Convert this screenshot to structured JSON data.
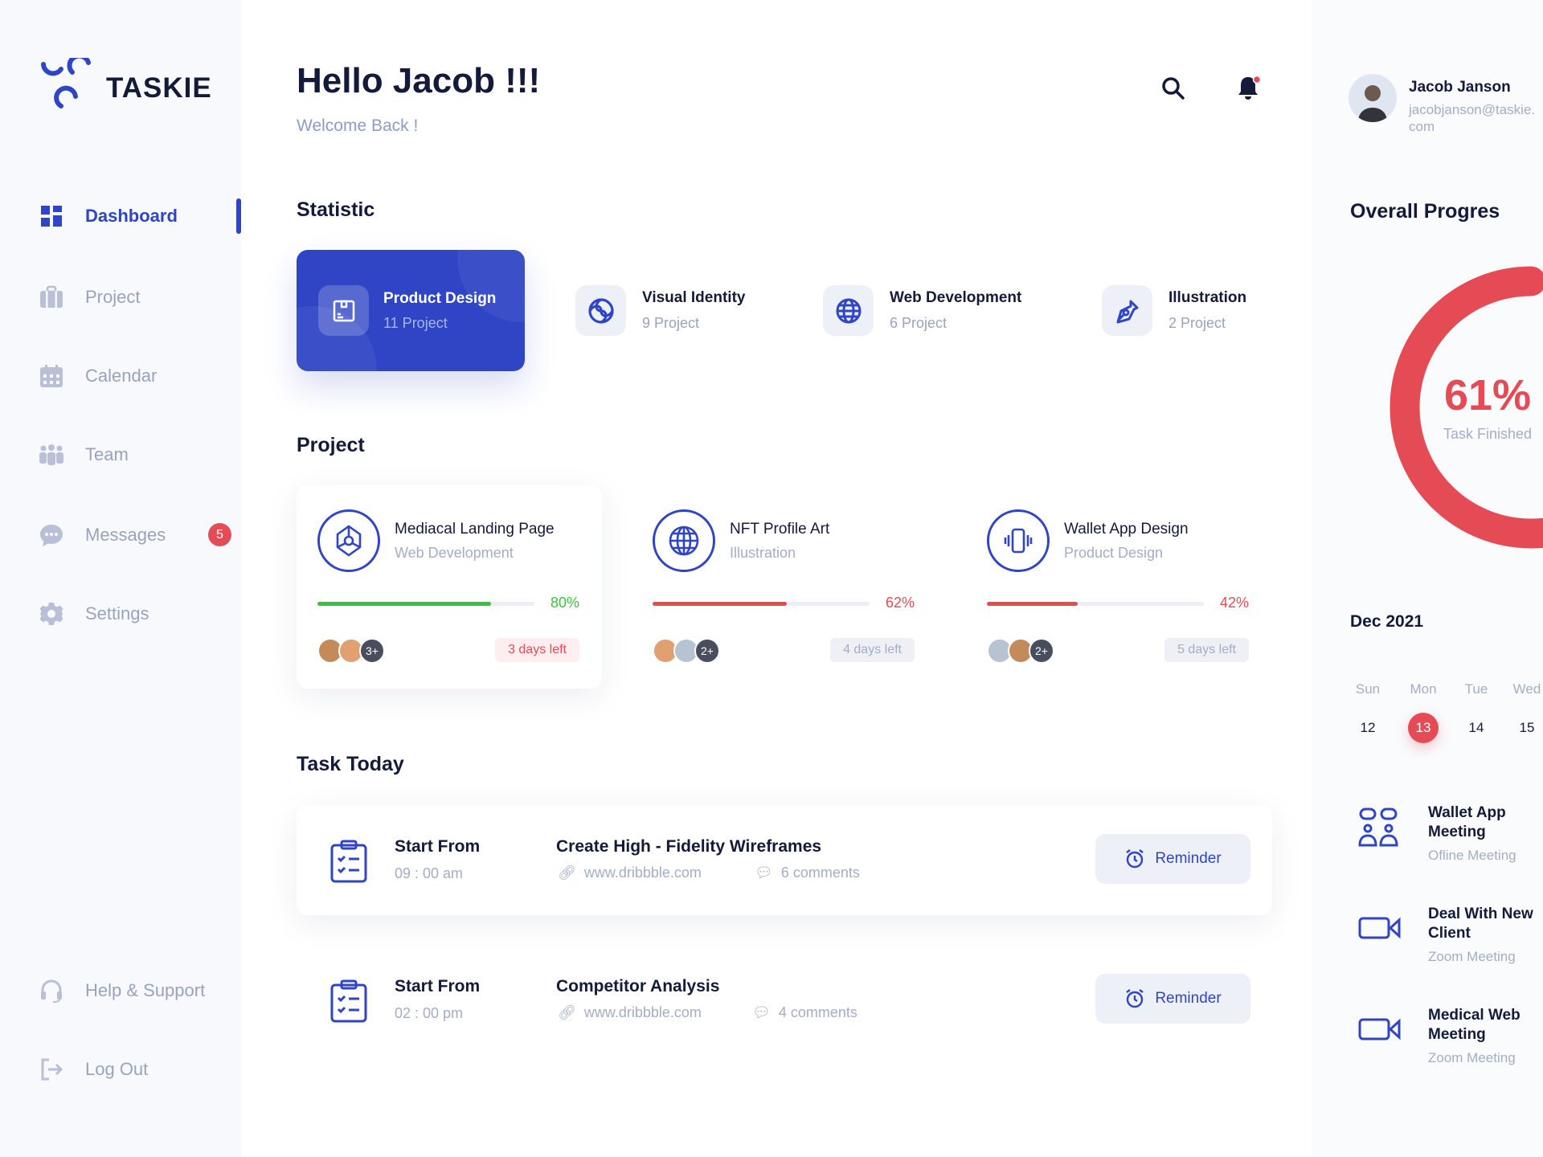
{
  "app": {
    "name": "TASKIE"
  },
  "sidebar": {
    "items": [
      {
        "label": "Dashboard",
        "icon": "grid-icon",
        "active": true
      },
      {
        "label": "Project",
        "icon": "briefcase-icon"
      },
      {
        "label": "Calendar",
        "icon": "calendar-icon"
      },
      {
        "label": "Team",
        "icon": "team-icon"
      },
      {
        "label": "Messages",
        "icon": "chat-icon",
        "badge": "5"
      },
      {
        "label": "Settings",
        "icon": "gear-icon"
      }
    ],
    "bottom": [
      {
        "label": "Help & Support",
        "icon": "headset-icon"
      },
      {
        "label": "Log Out",
        "icon": "logout-icon"
      }
    ]
  },
  "header": {
    "greeting": "Hello Jacob !!!",
    "subtitle": "Welcome Back !"
  },
  "user": {
    "name": "Jacob Janson",
    "email": "jacobjanson@taskie.com"
  },
  "statistic": {
    "title": "Statistic",
    "items": [
      {
        "title": "Product Design",
        "count": "11 Project",
        "icon": "box-icon",
        "active": true
      },
      {
        "title": "Visual Identity",
        "count": "9 Project",
        "icon": "swirl-icon"
      },
      {
        "title": "Web Development",
        "count": "6 Project",
        "icon": "globe-icon"
      },
      {
        "title": "Illustration",
        "count": "2 Project",
        "icon": "pen-tool-icon"
      }
    ]
  },
  "projects": {
    "title": "Project",
    "items": [
      {
        "title": "Mediacal Landing Page",
        "category": "Web Development",
        "progress": 80,
        "progress_label": "80%",
        "color": "#3cc23a",
        "more": "3+",
        "days_left": "3 days left",
        "urgent": true
      },
      {
        "title": "NFT Profile Art",
        "category": "Illustration",
        "progress": 62,
        "progress_label": "62%",
        "color": "#e54b55",
        "more": "2+",
        "days_left": "4 days left"
      },
      {
        "title": "Wallet App Design",
        "category": "Product Design",
        "progress": 42,
        "progress_label": "42%",
        "color": "#e54b55",
        "more": "2+",
        "days_left": "5 days left"
      }
    ]
  },
  "tasks": {
    "title": "Task Today",
    "items": [
      {
        "label": "Start From",
        "time": "09 : 00 am",
        "title": "Create High - Fidelity Wireframes",
        "link": "www.dribbble.com",
        "comments": "6 comments",
        "button": "Reminder"
      },
      {
        "label": "Start From",
        "time": "02 : 00 pm",
        "title": "Competitor Analysis",
        "link": "www.dribbble.com",
        "comments": "4 comments",
        "button": "Reminder"
      }
    ]
  },
  "progress": {
    "title": "Overall Progres",
    "value": 61,
    "value_label": "61%",
    "caption": "Task Finished",
    "color": "#e54b55"
  },
  "calendar": {
    "month": "Dec 2021",
    "days": [
      {
        "name": "Sun",
        "num": "12"
      },
      {
        "name": "Mon",
        "num": "13",
        "selected": true
      },
      {
        "name": "Tue",
        "num": "14"
      },
      {
        "name": "Wed",
        "num": "15"
      }
    ]
  },
  "meetings": [
    {
      "title": "Wallet App Meeting",
      "type": "Ofline Meeting",
      "icon": "meeting-icon"
    },
    {
      "title": "Deal With New Client",
      "type": "Zoom Meeting",
      "icon": "video-icon"
    },
    {
      "title": "Medical Web Meeting",
      "type": "Zoom Meeting",
      "icon": "video-icon"
    }
  ],
  "colors": {
    "accent": "#2f45c5",
    "danger": "#e54b55",
    "success": "#3cc23a",
    "muted": "#a4adc6"
  }
}
